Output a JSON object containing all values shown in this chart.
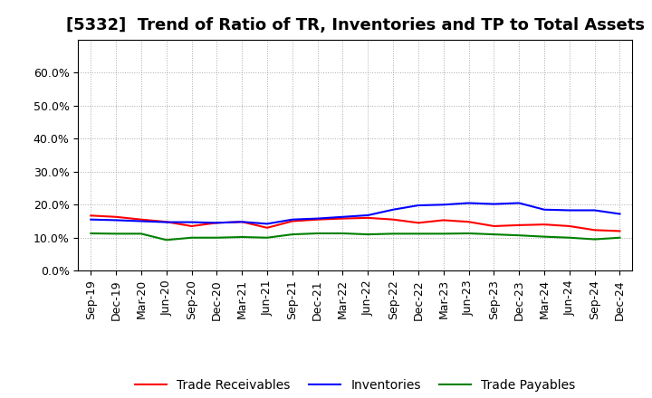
{
  "title": "[5332]  Trend of Ratio of TR, Inventories and TP to Total Assets",
  "xlabels": [
    "Sep-19",
    "Dec-19",
    "Mar-20",
    "Jun-20",
    "Sep-20",
    "Dec-20",
    "Mar-21",
    "Jun-21",
    "Sep-21",
    "Dec-21",
    "Mar-22",
    "Jun-22",
    "Sep-22",
    "Dec-22",
    "Mar-23",
    "Jun-23",
    "Sep-23",
    "Dec-23",
    "Mar-24",
    "Jun-24",
    "Sep-24",
    "Dec-24"
  ],
  "trade_receivables": [
    0.167,
    0.163,
    0.155,
    0.148,
    0.135,
    0.145,
    0.148,
    0.13,
    0.15,
    0.155,
    0.158,
    0.16,
    0.155,
    0.145,
    0.153,
    0.148,
    0.135,
    0.138,
    0.14,
    0.135,
    0.123,
    0.12
  ],
  "inventories": [
    0.155,
    0.153,
    0.15,
    0.147,
    0.147,
    0.145,
    0.148,
    0.142,
    0.155,
    0.158,
    0.163,
    0.168,
    0.185,
    0.198,
    0.2,
    0.205,
    0.202,
    0.205,
    0.185,
    0.183,
    0.183,
    0.172
  ],
  "trade_payables": [
    0.113,
    0.112,
    0.112,
    0.093,
    0.1,
    0.1,
    0.102,
    0.1,
    0.11,
    0.113,
    0.113,
    0.11,
    0.112,
    0.112,
    0.112,
    0.113,
    0.11,
    0.107,
    0.103,
    0.1,
    0.095,
    0.1
  ],
  "ylim": [
    0.0,
    0.7
  ],
  "yticks": [
    0.0,
    0.1,
    0.2,
    0.3,
    0.4,
    0.5,
    0.6
  ],
  "yticklabels": [
    "0.0%",
    "10.0%",
    "20.0%",
    "30.0%",
    "40.0%",
    "50.0%",
    "60.0%"
  ],
  "line_colors": {
    "trade_receivables": "#ff0000",
    "inventories": "#0000ff",
    "trade_payables": "#008000"
  },
  "legend_labels": [
    "Trade Receivables",
    "Inventories",
    "Trade Payables"
  ],
  "background_color": "#ffffff",
  "grid_color": "#aaaaaa",
  "title_fontsize": 13,
  "tick_fontsize": 9,
  "legend_fontsize": 10
}
